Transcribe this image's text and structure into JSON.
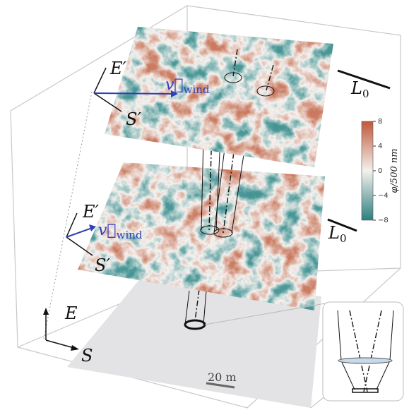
{
  "upper_layer": {
    "axes": {
      "east": "E′",
      "south": "S′"
    },
    "wind": {
      "symbol": "v⃗",
      "subscript": "wind"
    },
    "scale": {
      "symbol": "L",
      "subscript": "0"
    }
  },
  "lower_layer": {
    "axes": {
      "east": "E′",
      "south": "S′"
    },
    "wind": {
      "symbol": "v⃗",
      "subscript": "wind"
    },
    "scale": {
      "symbol": "L",
      "subscript": "0"
    }
  },
  "ground": {
    "axes": {
      "east": "E",
      "south": "S"
    },
    "scale_bar": "20 m"
  },
  "colorbar": {
    "label": "φ/500 nm",
    "lim": [
      -8,
      8
    ],
    "ticks": [
      8,
      4,
      0,
      {
        "value": -4,
        "label": "−4"
      },
      {
        "value": -8,
        "label": "−8"
      }
    ]
  }
}
